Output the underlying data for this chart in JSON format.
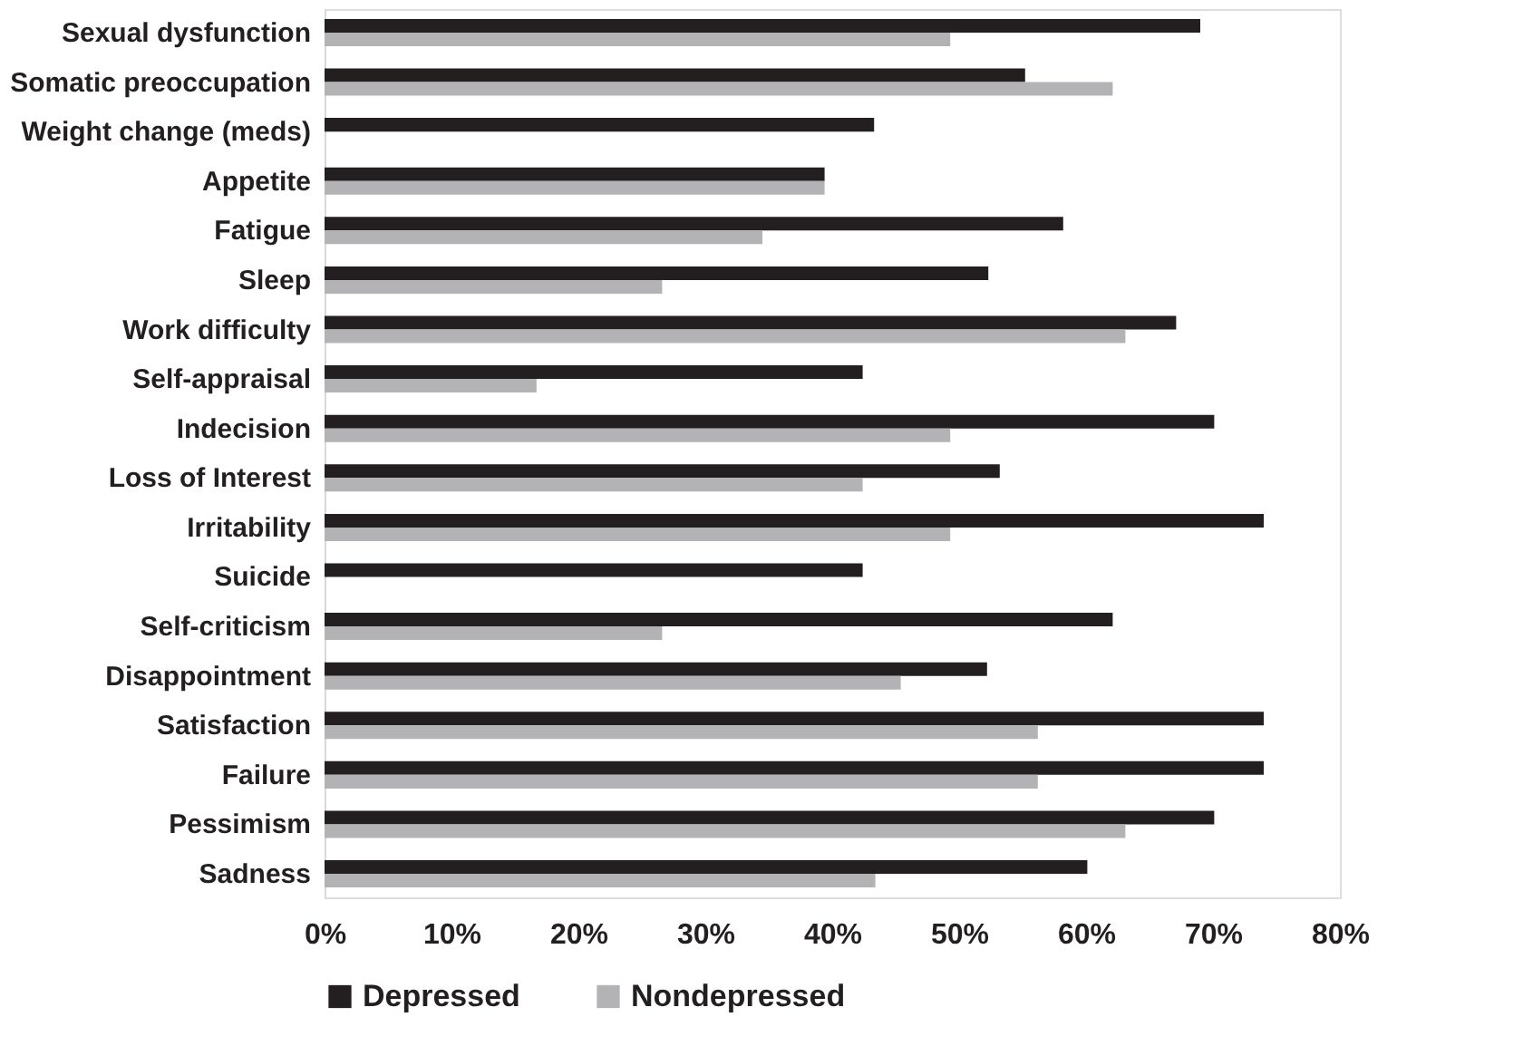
{
  "chart_data": {
    "type": "bar",
    "orientation": "horizontal",
    "categories": [
      "Sexual dysfunction",
      "Somatic preoccupation",
      "Weight change (meds)",
      "Appetite",
      "Fatigue",
      "Sleep",
      "Work difficulty",
      "Self-appraisal",
      "Indecision",
      "Loss of Interest",
      "Irritability",
      "Suicide",
      "Self-criticism",
      "Disappointment",
      "Satisfaction",
      "Failure",
      "Pessimism",
      "Sadness"
    ],
    "series": [
      {
        "name": "Depressed",
        "color": "#231f20",
        "values": [
          69.0,
          55.2,
          43.3,
          39.4,
          58.2,
          52.3,
          67.1,
          42.4,
          70.1,
          53.2,
          74.0,
          42.4,
          62.1,
          52.2,
          74.0,
          74.0,
          70.1,
          60.1
        ]
      },
      {
        "name": "Nondepressed",
        "color": "#b3b3b5",
        "values": [
          49.3,
          62.1,
          null,
          39.4,
          34.5,
          26.6,
          63.1,
          16.7,
          49.3,
          42.4,
          49.3,
          null,
          26.6,
          45.4,
          56.2,
          56.2,
          63.1,
          43.4
        ]
      }
    ],
    "xlim": [
      0,
      80
    ],
    "xticks": [
      {
        "value": 0,
        "label": "0%"
      },
      {
        "value": 10,
        "label": "10%"
      },
      {
        "value": 20,
        "label": "20%"
      },
      {
        "value": 30,
        "label": "30%"
      },
      {
        "value": 40,
        "label": "40%"
      },
      {
        "value": 50,
        "label": "50%"
      },
      {
        "value": 60,
        "label": "60%"
      },
      {
        "value": 70,
        "label": "70%"
      },
      {
        "value": 80,
        "label": "80%"
      }
    ],
    "grid": false,
    "legend": "bottom"
  }
}
